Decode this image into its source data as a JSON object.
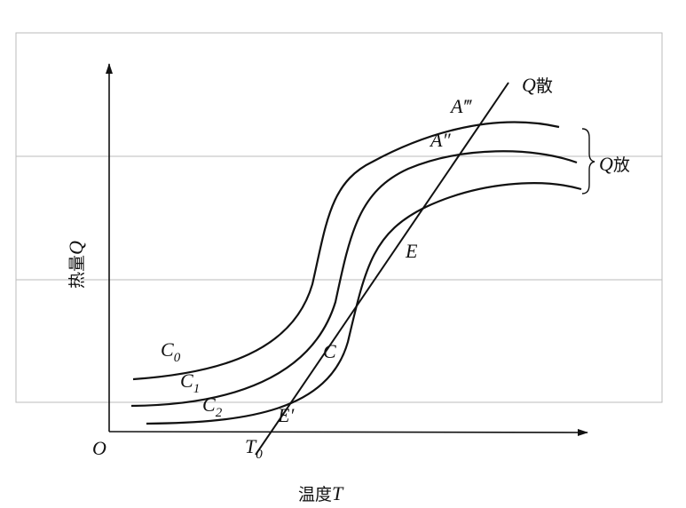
{
  "axes": {
    "y_label": {
      "text": "热量",
      "var": "Q"
    },
    "x_label": {
      "text": "温度",
      "var": "T"
    },
    "origin": "O",
    "t0": {
      "text": "T",
      "sub": "0"
    }
  },
  "lines": {
    "q_san": {
      "text": "Q",
      "sub": "散"
    },
    "q_fang": {
      "text": "Q",
      "sub": "放"
    }
  },
  "points": {
    "a3": "A‴",
    "a2": "A″",
    "e": "E",
    "c": "C",
    "e_prime": "E′"
  },
  "curves": {
    "c0": {
      "text": "C",
      "sub": "0"
    },
    "c1": {
      "text": "C",
      "sub": "1"
    },
    "c2": {
      "text": "C",
      "sub": "2"
    }
  }
}
